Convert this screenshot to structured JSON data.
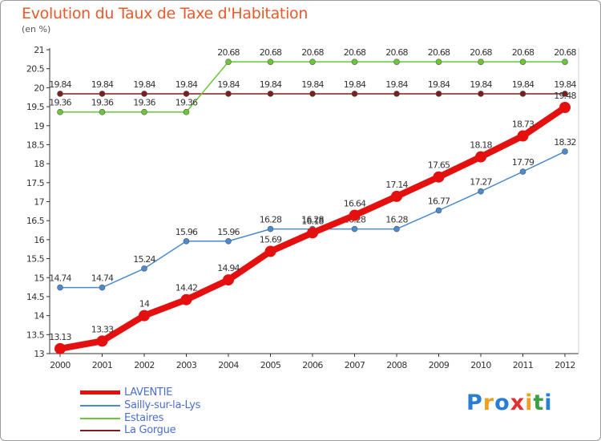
{
  "title": "Evolution du Taux de Taxe d'Habitation",
  "unit": "(en %)",
  "logo": {
    "text": "Proxiti",
    "letters": [
      "P",
      "r",
      "o",
      "x",
      "i",
      "t",
      "i"
    ],
    "colors": [
      "#2a7fd4",
      "#f0a020",
      "#2a7fd4",
      "#e03030",
      "#f0a020",
      "#3aa040",
      "#2a7fd4"
    ]
  },
  "chart_data": {
    "type": "line",
    "x": [
      "2000",
      "2001",
      "2002",
      "2003",
      "2004",
      "2005",
      "2006",
      "2007",
      "2008",
      "2009",
      "2010",
      "2011",
      "2012"
    ],
    "ylim": [
      13,
      21
    ],
    "yticks": [
      "13",
      "13.5",
      "14",
      "14.5",
      "15",
      "15.5",
      "16",
      "16.5",
      "17",
      "17.5",
      "18",
      "18.5",
      "19",
      "19.5",
      "20",
      "20.5",
      "21"
    ],
    "grid": false,
    "legend": "bottom-left",
    "series": [
      {
        "name": "LAVENTIE",
        "color": "#e41010",
        "values": [
          13.13,
          13.33,
          14,
          14.42,
          14.94,
          15.69,
          16.18,
          16.64,
          17.14,
          17.65,
          18.18,
          18.73,
          19.48
        ],
        "labels": [
          "13.13",
          "13.33",
          "14",
          "14.42",
          "14.94",
          "15.69",
          "16.18",
          "16.64",
          "17.14",
          "17.65",
          "18.18",
          "18.73",
          "19.48"
        ]
      },
      {
        "name": "Sailly-sur-la-Lys",
        "color": "#4a8ad0",
        "values": [
          14.74,
          14.74,
          15.24,
          15.96,
          15.96,
          16.28,
          16.28,
          16.28,
          16.28,
          16.77,
          17.27,
          17.79,
          18.32
        ],
        "labels": [
          "14.74",
          "14.74",
          "15.24",
          "15.96",
          "15.96",
          "16.28",
          "16.28",
          "16.28",
          "16.28",
          "16.77",
          "17.27",
          "17.79",
          "18.32"
        ]
      },
      {
        "name": "Estaires",
        "color": "#6cc63a",
        "values": [
          19.36,
          19.36,
          19.36,
          19.36,
          20.68,
          20.68,
          20.68,
          20.68,
          20.68,
          20.68,
          20.68,
          20.68,
          20.68
        ],
        "labels": [
          "19.36",
          "19.36",
          "19.36",
          "19.36",
          "20.68",
          "20.68",
          "20.68",
          "20.68",
          "20.68",
          "20.68",
          "20.68",
          "20.68",
          "20.68"
        ]
      },
      {
        "name": "La Gorgue",
        "color": "#7a1e1e",
        "values": [
          19.84,
          19.84,
          19.84,
          19.84,
          19.84,
          19.84,
          19.84,
          19.84,
          19.84,
          19.84,
          19.84,
          19.84,
          19.84
        ],
        "labels": [
          "19.84",
          "19.84",
          "19.84",
          "19.84",
          "19.84",
          "19.84",
          "19.84",
          "19.84",
          "19.84",
          "19.84",
          "19.84",
          "19.84",
          "19.84"
        ]
      }
    ]
  }
}
